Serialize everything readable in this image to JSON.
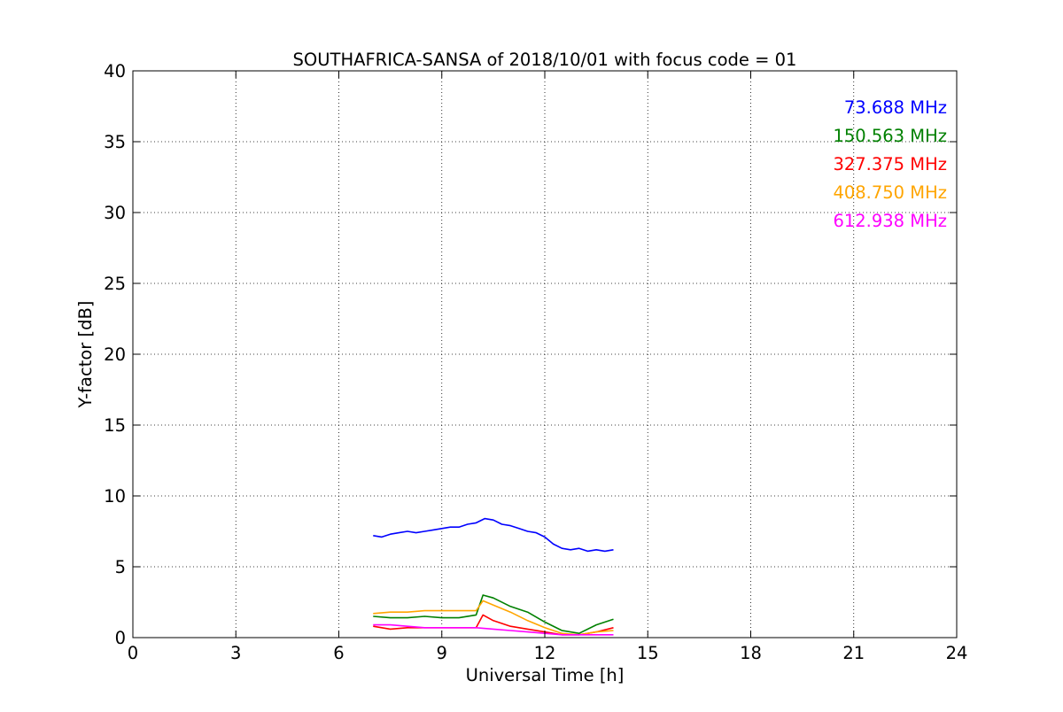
{
  "chart_data": {
    "type": "line",
    "title": "SOUTHAFRICA-SANSA of 2018/10/01 with focus code = 01",
    "xlabel": "Universal Time [h]",
    "ylabel": "Y-factor [dB]",
    "xlim": [
      0,
      24
    ],
    "ylim": [
      0,
      40
    ],
    "xticks": [
      "0",
      "3",
      "6",
      "9",
      "12",
      "15",
      "18",
      "21",
      "24"
    ],
    "yticks": [
      "0",
      "5",
      "10",
      "15",
      "20",
      "25",
      "30",
      "35",
      "40"
    ],
    "grid": true,
    "legend_position": "top-right",
    "series": [
      {
        "name": "73.688 MHz",
        "color": "#0000ff",
        "x": [
          7.0,
          7.25,
          7.5,
          7.75,
          8.0,
          8.25,
          8.5,
          8.75,
          9.0,
          9.25,
          9.5,
          9.75,
          10.0,
          10.25,
          10.5,
          10.75,
          11.0,
          11.25,
          11.5,
          11.75,
          12.0,
          12.25,
          12.5,
          12.75,
          13.0,
          13.25,
          13.5,
          13.75,
          14.0
        ],
        "y": [
          7.2,
          7.1,
          7.3,
          7.4,
          7.5,
          7.4,
          7.5,
          7.6,
          7.7,
          7.8,
          7.8,
          8.0,
          8.1,
          8.4,
          8.3,
          8.0,
          7.9,
          7.7,
          7.5,
          7.4,
          7.1,
          6.6,
          6.3,
          6.2,
          6.3,
          6.1,
          6.2,
          6.1,
          6.2
        ]
      },
      {
        "name": "150.563 MHz",
        "color": "#008000",
        "x": [
          7.0,
          7.5,
          8.0,
          8.5,
          9.0,
          9.5,
          10.0,
          10.2,
          10.5,
          11.0,
          11.5,
          12.0,
          12.5,
          13.0,
          13.5,
          14.0
        ],
        "y": [
          1.5,
          1.4,
          1.4,
          1.5,
          1.4,
          1.4,
          1.6,
          3.0,
          2.8,
          2.2,
          1.8,
          1.1,
          0.5,
          0.3,
          0.9,
          1.3
        ]
      },
      {
        "name": "327.375 MHz",
        "color": "#ff0000",
        "x": [
          7.0,
          7.5,
          8.0,
          8.5,
          9.0,
          9.5,
          10.0,
          10.2,
          10.5,
          11.0,
          11.5,
          12.0,
          12.5,
          13.0,
          13.5,
          14.0
        ],
        "y": [
          0.8,
          0.6,
          0.7,
          0.7,
          0.7,
          0.7,
          0.7,
          1.6,
          1.2,
          0.8,
          0.6,
          0.4,
          0.2,
          0.2,
          0.4,
          0.7
        ]
      },
      {
        "name": "408.750 MHz",
        "color": "#ffa500",
        "x": [
          7.0,
          7.5,
          8.0,
          8.5,
          9.0,
          9.5,
          10.0,
          10.2,
          10.5,
          11.0,
          11.5,
          12.0,
          12.5,
          13.0,
          13.5,
          14.0
        ],
        "y": [
          1.7,
          1.8,
          1.8,
          1.9,
          1.9,
          1.9,
          1.9,
          2.6,
          2.3,
          1.8,
          1.2,
          0.7,
          0.3,
          0.2,
          0.4,
          0.5
        ]
      },
      {
        "name": "612.938 MHz",
        "color": "#ff00ff",
        "x": [
          7.0,
          7.5,
          8.0,
          8.5,
          9.0,
          9.5,
          10.0,
          10.5,
          11.0,
          11.5,
          12.0,
          12.5,
          13.0,
          13.5,
          14.0
        ],
        "y": [
          0.9,
          0.9,
          0.8,
          0.7,
          0.7,
          0.7,
          0.7,
          0.6,
          0.5,
          0.4,
          0.3,
          0.2,
          0.2,
          0.2,
          0.2
        ]
      }
    ]
  }
}
